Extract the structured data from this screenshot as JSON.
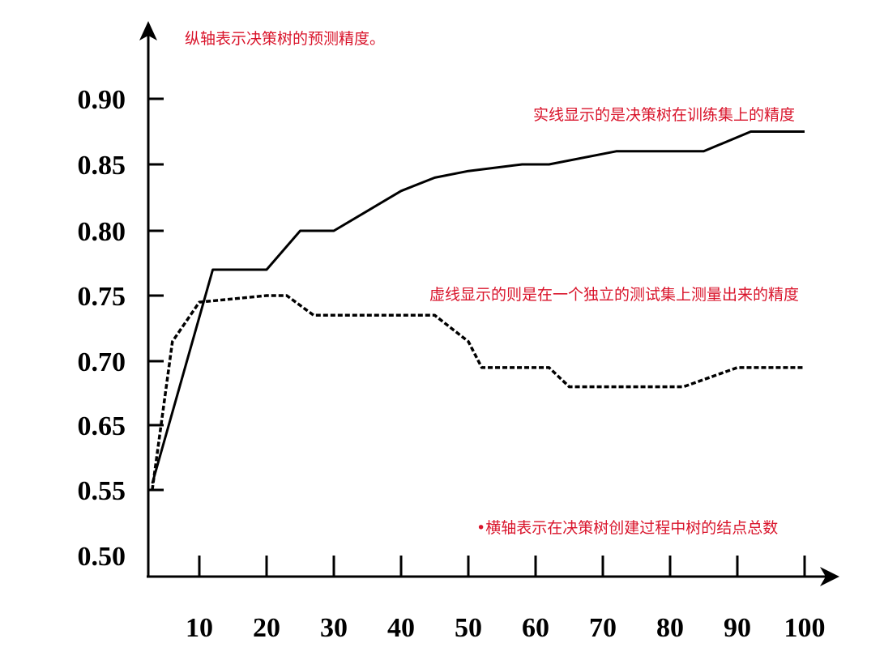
{
  "chart_data": {
    "type": "line",
    "x_ticks": [
      10,
      20,
      30,
      40,
      50,
      60,
      70,
      80,
      90,
      100
    ],
    "y_ticks": [
      "0.50",
      "0.55",
      "0.65",
      "0.70",
      "0.75",
      "0.80",
      "0.85",
      "0.90"
    ],
    "series": [
      {
        "style": "solid",
        "points": [
          [
            3,
            0.56
          ],
          [
            12,
            0.77
          ],
          [
            20,
            0.77
          ],
          [
            25,
            0.8
          ],
          [
            30,
            0.8
          ],
          [
            35,
            0.815
          ],
          [
            40,
            0.83
          ],
          [
            45,
            0.84
          ],
          [
            50,
            0.845
          ],
          [
            58,
            0.85
          ],
          [
            62,
            0.85
          ],
          [
            72,
            0.86
          ],
          [
            85,
            0.86
          ],
          [
            92,
            0.875
          ],
          [
            100,
            0.875
          ]
        ]
      },
      {
        "style": "dashed",
        "points": [
          [
            3,
            0.55
          ],
          [
            6,
            0.715
          ],
          [
            10,
            0.745
          ],
          [
            20,
            0.75
          ],
          [
            23,
            0.75
          ],
          [
            27,
            0.735
          ],
          [
            45,
            0.735
          ],
          [
            50,
            0.715
          ],
          [
            52,
            0.695
          ],
          [
            62,
            0.695
          ],
          [
            65,
            0.68
          ],
          [
            82,
            0.68
          ],
          [
            90,
            0.695
          ],
          [
            100,
            0.695
          ]
        ]
      }
    ],
    "colors": {
      "axis": "#000000",
      "line": "#000000",
      "annotation": "#d9142b"
    },
    "grid": false,
    "legend": "none"
  },
  "annotations": {
    "y_axis_note": "纵轴表示决策树的预测精度。",
    "solid_note": "实线显示的是决策树在训练集上的精度",
    "dashed_note": "虚线显示的则是在一个独立的测试集上测量出来的精度",
    "x_axis_note": "•横轴表示在决策树创建过程中树的结点总数"
  }
}
